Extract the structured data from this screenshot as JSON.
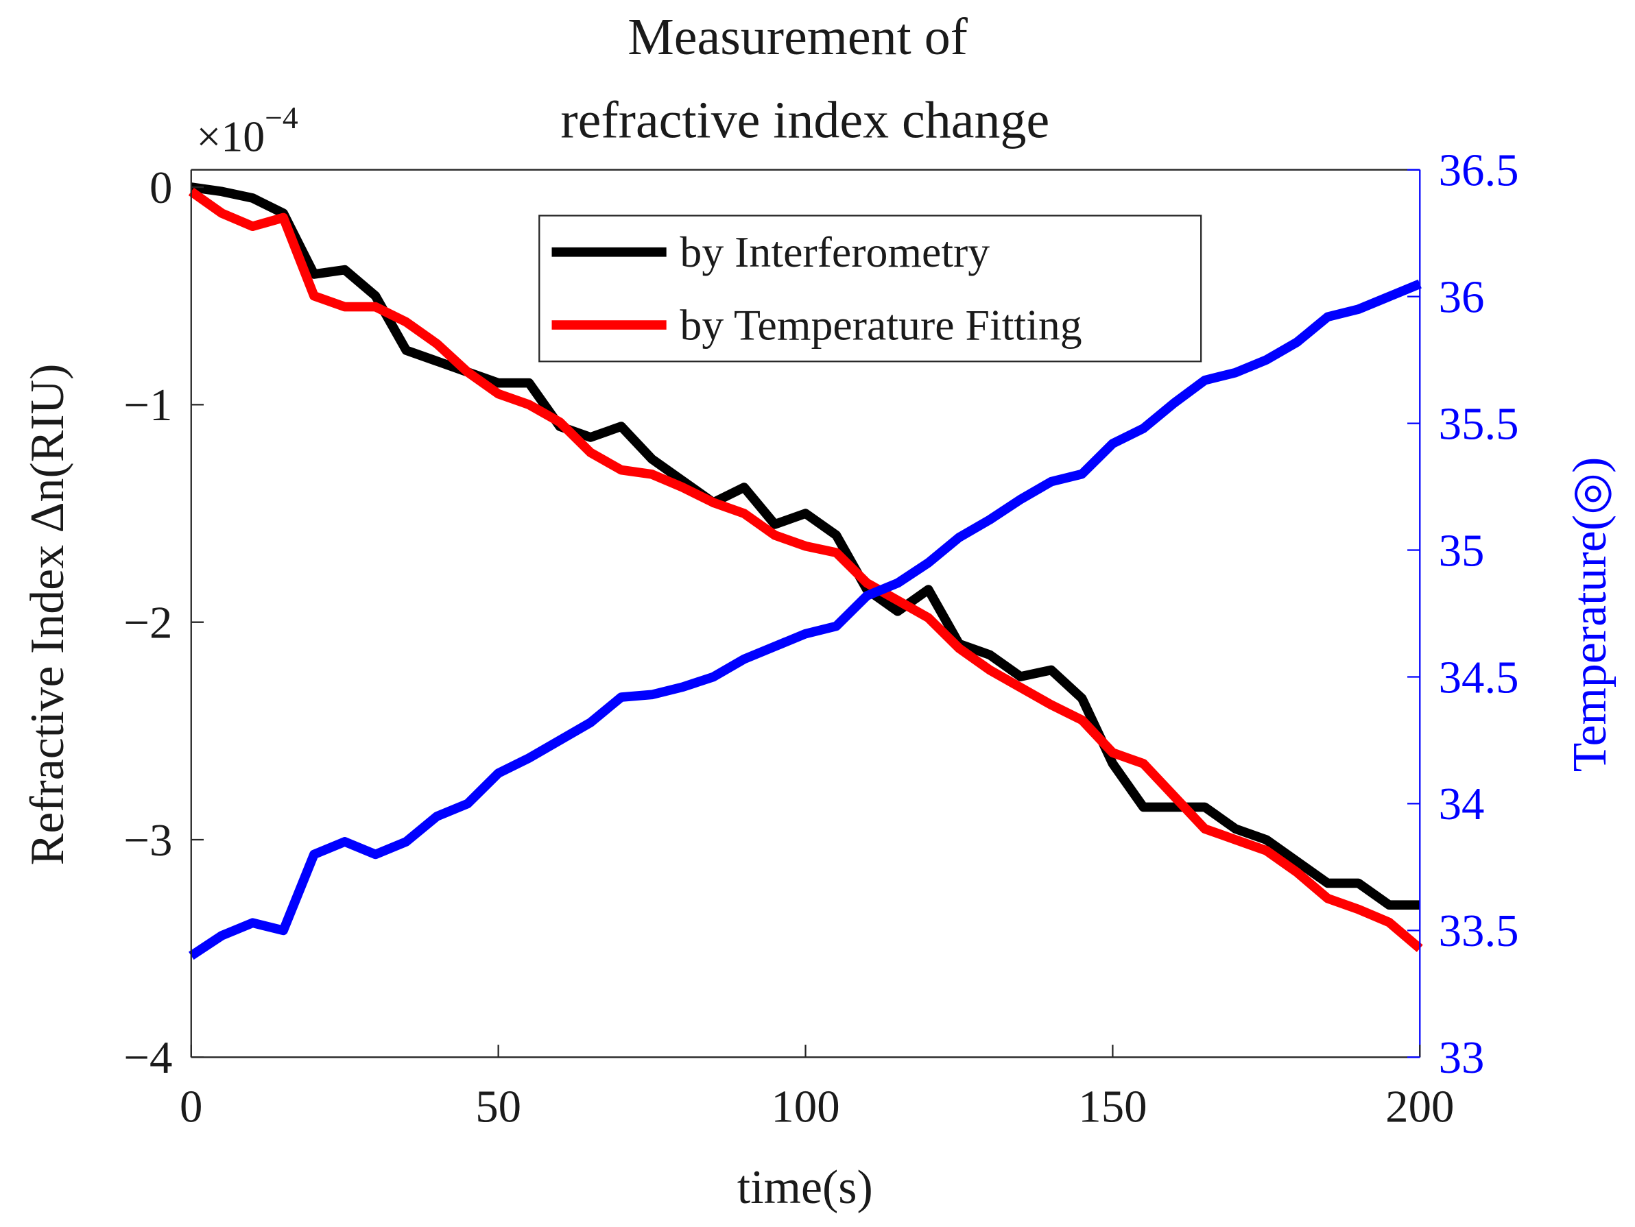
{
  "chart_data": {
    "type": "line",
    "title": [
      "Measurement of",
      "refractive index change"
    ],
    "x_label": "time(s)",
    "y_label": "Refractive Index Δn(RIU)",
    "y2_label": "Temperature(◎)",
    "y_exponent": {
      "base": "×10",
      "power": "−4"
    },
    "x": [
      0,
      5,
      10,
      15,
      20,
      25,
      30,
      35,
      40,
      45,
      50,
      55,
      60,
      65,
      70,
      75,
      80,
      85,
      90,
      95,
      100,
      105,
      110,
      115,
      120,
      125,
      130,
      135,
      140,
      145,
      150,
      155,
      160,
      165,
      170,
      175,
      180,
      185,
      190,
      195,
      200
    ],
    "series": [
      {
        "name": "by Interferometry",
        "color": "#000000",
        "axis": "y",
        "values": [
          0,
          -0.02,
          -0.05,
          -0.12,
          -0.4,
          -0.38,
          -0.5,
          -0.75,
          -0.8,
          -0.85,
          -0.9,
          -0.9,
          -1.1,
          -1.15,
          -1.1,
          -1.25,
          -1.35,
          -1.45,
          -1.38,
          -1.55,
          -1.5,
          -1.6,
          -1.85,
          -1.95,
          -1.85,
          -2.1,
          -2.15,
          -2.25,
          -2.22,
          -2.35,
          -2.65,
          -2.85,
          -2.85,
          -2.85,
          -2.95,
          -3.0,
          -3.1,
          -3.2,
          -3.2,
          -3.3,
          -3.3
        ]
      },
      {
        "name": "by Temperature Fitting",
        "color": "#ff0000",
        "axis": "y",
        "values": [
          -0.02,
          -0.12,
          -0.18,
          -0.14,
          -0.5,
          -0.55,
          -0.55,
          -0.62,
          -0.72,
          -0.85,
          -0.95,
          -1.0,
          -1.08,
          -1.22,
          -1.3,
          -1.32,
          -1.38,
          -1.45,
          -1.5,
          -1.6,
          -1.65,
          -1.68,
          -1.82,
          -1.9,
          -1.98,
          -2.12,
          -2.22,
          -2.3,
          -2.38,
          -2.45,
          -2.6,
          -2.65,
          -2.8,
          -2.95,
          -3.0,
          -3.05,
          -3.15,
          -3.27,
          -3.32,
          -3.38,
          -3.5
        ]
      },
      {
        "name": null,
        "color": "#0000ff",
        "axis": "y2",
        "values": [
          33.4,
          33.48,
          33.53,
          33.5,
          33.8,
          33.85,
          33.8,
          33.85,
          33.95,
          34.0,
          34.12,
          34.18,
          34.25,
          34.32,
          34.42,
          34.43,
          34.46,
          34.5,
          34.57,
          34.62,
          34.67,
          34.7,
          34.82,
          34.87,
          34.95,
          35.05,
          35.12,
          35.2,
          35.27,
          35.3,
          35.42,
          35.48,
          35.58,
          35.67,
          35.7,
          35.75,
          35.82,
          35.92,
          35.95,
          36.0,
          36.05
        ]
      }
    ],
    "xlim": [
      0,
      200
    ],
    "xticks": [
      0,
      50,
      100,
      150,
      200
    ],
    "ylim": [
      -4,
      0.08
    ],
    "yticks": [
      {
        "value": -4,
        "label": "−4"
      },
      {
        "value": -3,
        "label": "−3"
      },
      {
        "value": -2,
        "label": "−2"
      },
      {
        "value": -1,
        "label": "−1"
      },
      0
    ],
    "y2lim": [
      33,
      36.5
    ],
    "y2ticks": [
      33,
      33.5,
      34,
      34.5,
      35,
      35.5,
      36,
      36.5
    ],
    "y2_color": "#0000ff",
    "legend": "top"
  }
}
